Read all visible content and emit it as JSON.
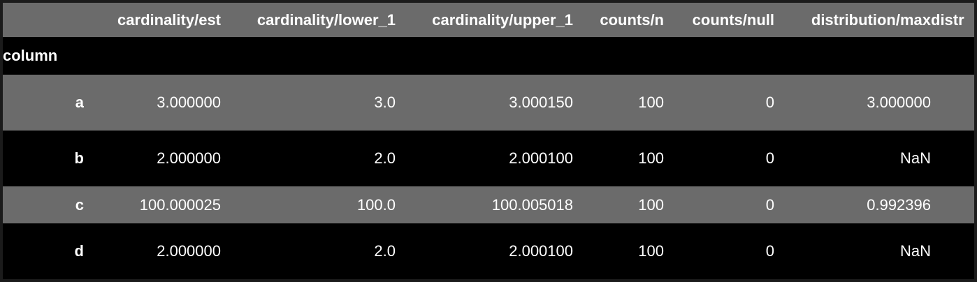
{
  "table": {
    "index_name": "column",
    "columns": [
      "",
      "cardinality/est",
      "cardinality/lower_1",
      "cardinality/upper_1",
      "counts/n",
      "counts/null",
      "distribution/max",
      "distr"
    ],
    "rows": [
      {
        "index": "a",
        "cells": [
          "3.000000",
          "3.0",
          "3.000150",
          "100",
          "0",
          "3.000000",
          ""
        ]
      },
      {
        "index": "b",
        "cells": [
          "2.000000",
          "2.0",
          "2.000100",
          "100",
          "0",
          "NaN",
          ""
        ]
      },
      {
        "index": "c",
        "cells": [
          "100.000025",
          "100.0",
          "100.005018",
          "100",
          "0",
          "0.992396",
          ""
        ]
      },
      {
        "index": "d",
        "cells": [
          "2.000000",
          "2.0",
          "2.000100",
          "100",
          "0",
          "NaN",
          ""
        ]
      }
    ]
  },
  "colors": {
    "header_bg": "#6b6b6b",
    "alt_row_bg": "#6b6b6b",
    "row_bg": "#000000",
    "text": "#ffffff"
  }
}
